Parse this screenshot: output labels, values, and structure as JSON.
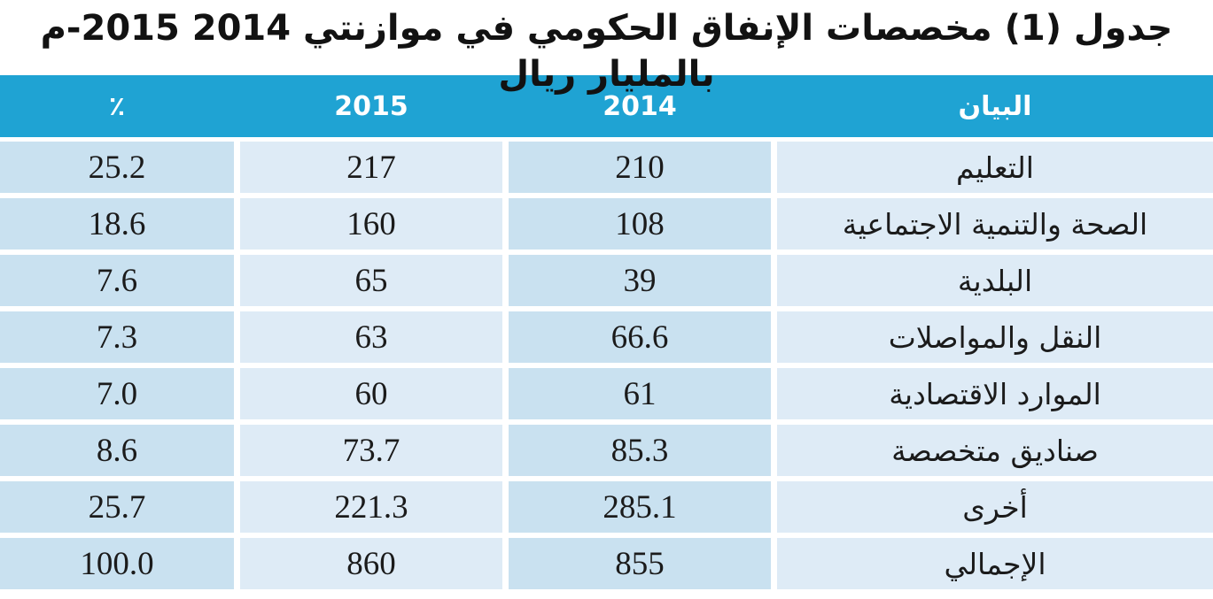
{
  "page": {
    "title": "جدول (1) مخصصات الإنفاق الحكومي في موازنتي 2014 2015-م بالمليار ريال"
  },
  "colors": {
    "header_bg": "#1FA3D3",
    "header_text": "#FFFFFF",
    "cell_dark": "#C9E1F0",
    "cell_light": "#DEEBF6",
    "body_text": "#1B1B1B",
    "title_text": "#121212"
  },
  "table": {
    "columns": [
      {
        "key": "item",
        "label": "البيان"
      },
      {
        "key": "y2014",
        "label": "2014"
      },
      {
        "key": "y2015",
        "label": "2015"
      },
      {
        "key": "pct",
        "label": "٪"
      }
    ],
    "rows": [
      {
        "item": "التعليم",
        "y2014": "210",
        "y2015": "217",
        "pct": "25.2"
      },
      {
        "item": "الصحة والتنمية الاجتماعية",
        "y2014": "108",
        "y2015": "160",
        "pct": "18.6"
      },
      {
        "item": "البلدية",
        "y2014": "39",
        "y2015": "65",
        "pct": "7.6"
      },
      {
        "item": "النقل والمواصلات",
        "y2014": "66.6",
        "y2015": "63",
        "pct": "7.3"
      },
      {
        "item": "الموارد الاقتصادية",
        "y2014": "61",
        "y2015": "60",
        "pct": "7.0"
      },
      {
        "item": "صناديق متخصصة",
        "y2014": "85.3",
        "y2015": "73.7",
        "pct": "8.6"
      },
      {
        "item": "أخرى",
        "y2014": "285.1",
        "y2015": "221.3",
        "pct": "25.7"
      },
      {
        "item": "الإجمالي",
        "y2014": "855",
        "y2015": "860",
        "pct": "100.0"
      }
    ]
  },
  "chart_data": {
    "type": "table",
    "title": "جدول (1) مخصصات الإنفاق الحكومي في موازنتي 2014 2015-م بالمليار ريال",
    "unit": "مليار ريال",
    "categories": [
      "التعليم",
      "الصحة والتنمية الاجتماعية",
      "البلدية",
      "النقل والمواصلات",
      "الموارد الاقتصادية",
      "صناديق متخصصة",
      "أخرى",
      "الإجمالي"
    ],
    "series": [
      {
        "name": "2014",
        "values": [
          210,
          108,
          39,
          66.6,
          61,
          85.3,
          285.1,
          855
        ]
      },
      {
        "name": "2015",
        "values": [
          217,
          160,
          65,
          63,
          60,
          73.7,
          221.3,
          860
        ]
      },
      {
        "name": "٪",
        "values": [
          25.2,
          18.6,
          7.6,
          7.3,
          7.0,
          8.6,
          25.7,
          100.0
        ]
      }
    ],
    "layout": {
      "direction": "rtl",
      "header_position": "top",
      "gridlines": "white-gaps"
    }
  }
}
